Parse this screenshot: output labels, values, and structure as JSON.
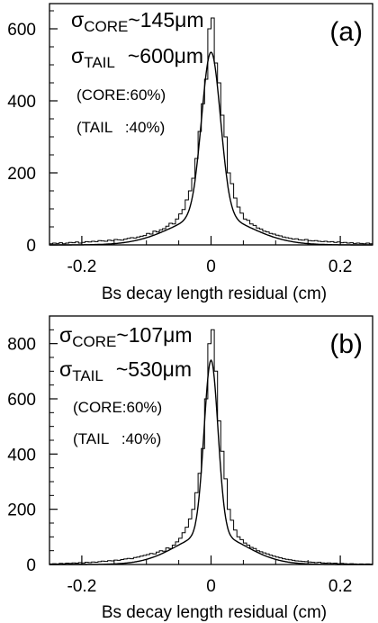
{
  "chart_data": [
    {
      "type": "line",
      "panel_label": "(a)",
      "xlabel": "Bs decay length residual (cm)",
      "ylabel": "",
      "xlim": [
        -0.25,
        0.25
      ],
      "ylim": [
        0,
        670
      ],
      "x_ticks": [
        -0.2,
        0,
        0.2
      ],
      "x_tick_labels": [
        "-0.2",
        "0",
        "0.2"
      ],
      "y_ticks": [
        0,
        200,
        400,
        600
      ],
      "y_tick_labels": [
        "0",
        "200",
        "400",
        "600"
      ],
      "annotations": {
        "core_sigma_symbol": "σ",
        "core_sigma_sub": "CORE",
        "core_sigma_value": "~145μm",
        "tail_sigma_symbol": "σ",
        "tail_sigma_sub": "TAIL",
        "tail_sigma_value": "~600μm",
        "core_fraction": "(CORE:60%)",
        "tail_fraction": "(TAIL   :40%)"
      },
      "series": [
        {
          "kind": "histogram",
          "bin_width": 0.005,
          "x": [
            -0.25,
            -0.245,
            -0.24,
            -0.235,
            -0.23,
            -0.225,
            -0.22,
            -0.215,
            -0.21,
            -0.205,
            -0.2,
            -0.195,
            -0.19,
            -0.185,
            -0.18,
            -0.175,
            -0.17,
            -0.165,
            -0.16,
            -0.155,
            -0.15,
            -0.145,
            -0.14,
            -0.135,
            -0.13,
            -0.125,
            -0.12,
            -0.115,
            -0.11,
            -0.105,
            -0.1,
            -0.095,
            -0.09,
            -0.085,
            -0.08,
            -0.075,
            -0.07,
            -0.065,
            -0.06,
            -0.055,
            -0.05,
            -0.045,
            -0.04,
            -0.035,
            -0.03,
            -0.025,
            -0.02,
            -0.015,
            -0.01,
            -0.005,
            0.0,
            0.005,
            0.01,
            0.015,
            0.02,
            0.025,
            0.03,
            0.035,
            0.04,
            0.045,
            0.05,
            0.055,
            0.06,
            0.065,
            0.07,
            0.075,
            0.08,
            0.085,
            0.09,
            0.095,
            0.1,
            0.105,
            0.11,
            0.115,
            0.12,
            0.125,
            0.13,
            0.135,
            0.14,
            0.145,
            0.15,
            0.155,
            0.16,
            0.165,
            0.17,
            0.175,
            0.18,
            0.185,
            0.19,
            0.195,
            0.2,
            0.205,
            0.21,
            0.215,
            0.22,
            0.225,
            0.23,
            0.235,
            0.24,
            0.245
          ],
          "values": [
            3,
            5,
            4,
            6,
            3,
            5,
            7,
            6,
            8,
            5,
            7,
            9,
            8,
            10,
            9,
            12,
            11,
            10,
            13,
            12,
            15,
            14,
            13,
            16,
            18,
            20,
            19,
            22,
            24,
            26,
            32,
            30,
            38,
            36,
            42,
            45,
            52,
            60,
            58,
            72,
            86,
            98,
            125,
            150,
            185,
            240,
            315,
            392,
            460,
            600,
            630,
            505,
            450,
            360,
            300,
            200,
            170,
            130,
            105,
            88,
            72,
            68,
            58,
            54,
            47,
            44,
            38,
            36,
            32,
            30,
            27,
            25,
            22,
            20,
            18,
            16,
            17,
            14,
            13,
            15,
            12,
            11,
            12,
            10,
            9,
            10,
            8,
            9,
            7,
            8,
            6,
            7,
            5,
            6,
            4,
            5,
            4,
            3,
            5,
            3
          ]
        },
        {
          "kind": "fit",
          "core_sigma_cm": 0.0145,
          "tail_sigma_cm": 0.06,
          "core_peak": 455,
          "tail_peak": 80,
          "x_range": [
            -0.25,
            0.25
          ]
        }
      ]
    },
    {
      "type": "line",
      "panel_label": "(b)",
      "xlabel": "Bs decay length residual (cm)",
      "ylabel": "",
      "xlim": [
        -0.25,
        0.25
      ],
      "ylim": [
        0,
        900
      ],
      "x_ticks": [
        -0.2,
        0,
        0.2
      ],
      "x_tick_labels": [
        "-0.2",
        "0",
        "0.2"
      ],
      "y_ticks": [
        0,
        200,
        400,
        600,
        800
      ],
      "y_tick_labels": [
        "0",
        "200",
        "400",
        "600",
        "800"
      ],
      "annotations": {
        "core_sigma_symbol": "σ",
        "core_sigma_sub": "CORE",
        "core_sigma_value": "~107μm",
        "tail_sigma_symbol": "σ",
        "tail_sigma_sub": "TAIL",
        "tail_sigma_value": "~530μm",
        "core_fraction": "(CORE:60%)",
        "tail_fraction": "(TAIL   :40%)"
      },
      "series": [
        {
          "kind": "histogram",
          "bin_width": 0.005,
          "x": [
            -0.25,
            -0.245,
            -0.24,
            -0.235,
            -0.23,
            -0.225,
            -0.22,
            -0.215,
            -0.21,
            -0.205,
            -0.2,
            -0.195,
            -0.19,
            -0.185,
            -0.18,
            -0.175,
            -0.17,
            -0.165,
            -0.16,
            -0.155,
            -0.15,
            -0.145,
            -0.14,
            -0.135,
            -0.13,
            -0.125,
            -0.12,
            -0.115,
            -0.11,
            -0.105,
            -0.1,
            -0.095,
            -0.09,
            -0.085,
            -0.08,
            -0.075,
            -0.07,
            -0.065,
            -0.06,
            -0.055,
            -0.05,
            -0.045,
            -0.04,
            -0.035,
            -0.03,
            -0.025,
            -0.02,
            -0.015,
            -0.01,
            -0.005,
            0.0,
            0.005,
            0.01,
            0.015,
            0.02,
            0.025,
            0.03,
            0.035,
            0.04,
            0.045,
            0.05,
            0.055,
            0.06,
            0.065,
            0.07,
            0.075,
            0.08,
            0.085,
            0.09,
            0.095,
            0.1,
            0.105,
            0.11,
            0.115,
            0.12,
            0.125,
            0.13,
            0.135,
            0.14,
            0.145,
            0.15,
            0.155,
            0.16,
            0.165,
            0.17,
            0.175,
            0.18,
            0.185,
            0.19,
            0.195,
            0.2,
            0.205,
            0.21,
            0.215,
            0.22,
            0.225,
            0.23,
            0.235,
            0.24,
            0.245
          ],
          "values": [
            2,
            3,
            2,
            4,
            3,
            5,
            4,
            6,
            5,
            7,
            6,
            8,
            7,
            9,
            8,
            10,
            12,
            11,
            14,
            13,
            16,
            15,
            18,
            20,
            22,
            21,
            25,
            27,
            30,
            33,
            36,
            40,
            38,
            45,
            50,
            48,
            60,
            58,
            70,
            82,
            95,
            115,
            135,
            165,
            200,
            260,
            330,
            420,
            600,
            800,
            850,
            700,
            520,
            410,
            310,
            200,
            160,
            125,
            100,
            90,
            78,
            70,
            62,
            58,
            50,
            46,
            42,
            38,
            34,
            30,
            27,
            24,
            21,
            19,
            17,
            15,
            13,
            12,
            11,
            10,
            9,
            8,
            7,
            8,
            6,
            5,
            6,
            4,
            5,
            3,
            4,
            3,
            2,
            3,
            2,
            1,
            2,
            1,
            2,
            1
          ]
        },
        {
          "kind": "fit",
          "core_sigma_cm": 0.0107,
          "tail_sigma_cm": 0.053,
          "core_peak": 630,
          "tail_peak": 110,
          "x_range": [
            -0.25,
            0.25
          ]
        }
      ]
    }
  ]
}
